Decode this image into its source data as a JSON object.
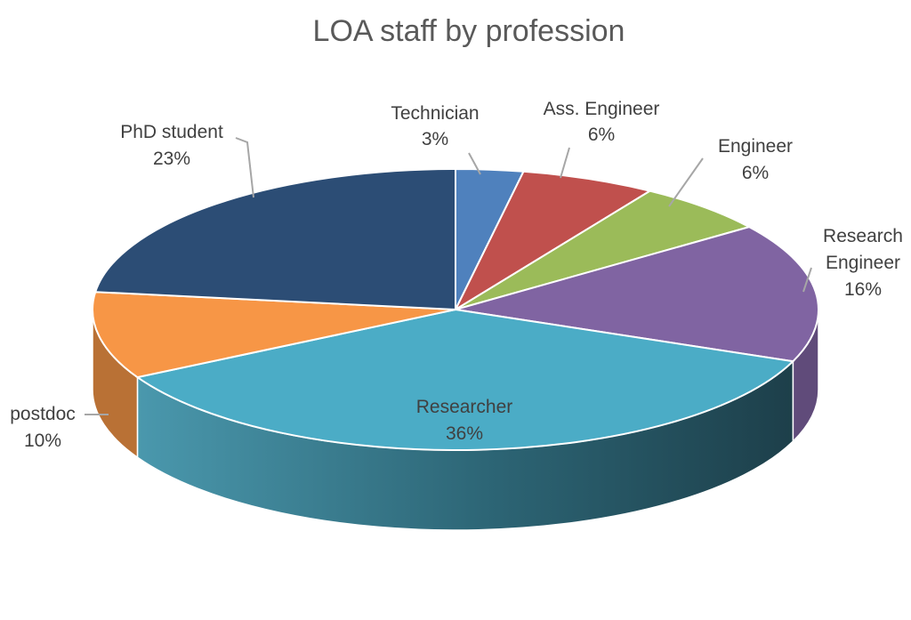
{
  "chart_data": {
    "type": "pie",
    "title": "LOA  staff  by profession",
    "slices": [
      {
        "name": "Technician",
        "value": 3,
        "label": "3%",
        "color": "#4f81bd"
      },
      {
        "name": "Ass. Engineer",
        "value": 6,
        "label": "6%",
        "color": "#c0504d"
      },
      {
        "name": "Engineer",
        "value": 6,
        "label": "6%",
        "color": "#9bbb59"
      },
      {
        "name": "Research Engineer",
        "value": 16,
        "label": "16%",
        "color": "#8064a2"
      },
      {
        "name": "Researcher",
        "value": 36,
        "label": "36%",
        "color": "#4bacc6"
      },
      {
        "name": "postdoc",
        "value": 10,
        "label": "10%",
        "color": "#f79646"
      },
      {
        "name": "PhD student",
        "value": 23,
        "label": "23%",
        "color": "#2c4d75"
      }
    ],
    "style": "3d-exploded-none",
    "legend": "none",
    "data_labels": "category-and-percent-outside-with-leader-lines"
  }
}
